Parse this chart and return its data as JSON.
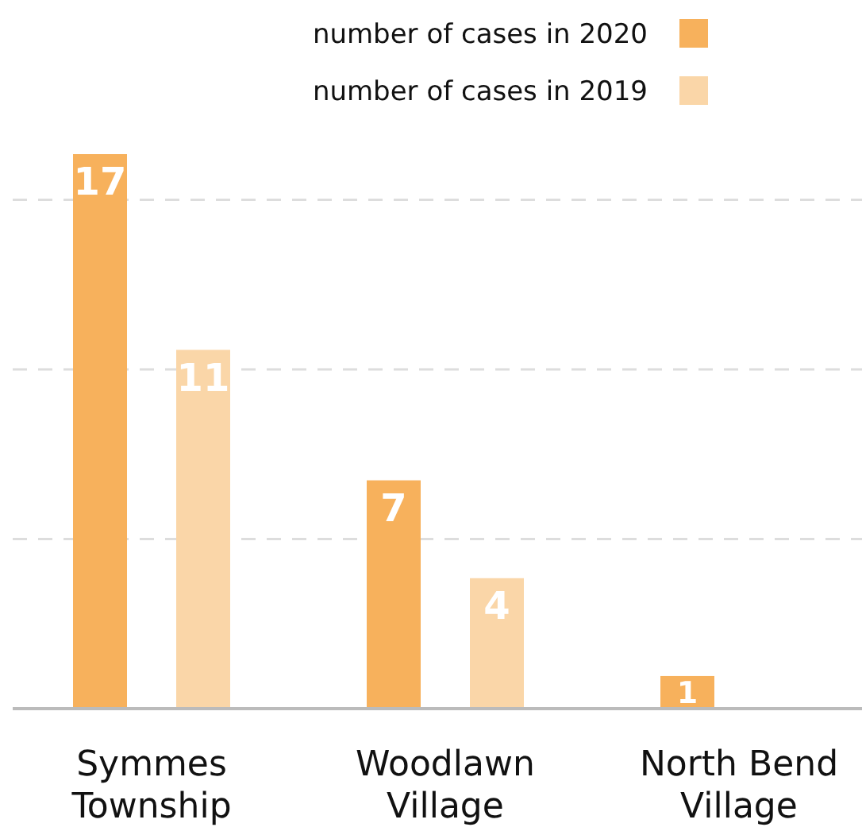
{
  "chart_data": {
    "type": "bar",
    "categories": [
      "Symmes Township",
      "Woodlawn Village",
      "North Bend Village"
    ],
    "series": [
      {
        "name": "number of cases in 2020",
        "color": "#f7b15c",
        "values": [
          17,
          7,
          1
        ]
      },
      {
        "name": "number of cases in 2019",
        "color": "#fad6a8",
        "values": [
          11,
          4,
          null
        ]
      }
    ],
    "yticks": [
      {
        "value": 5.2,
        "label": null
      },
      {
        "value": 10.4,
        "label": null
      },
      {
        "value": 15.6,
        "label": null
      }
    ],
    "grid": "y",
    "legend": "top right",
    "data_labels": true,
    "tick_labels": "x"
  }
}
